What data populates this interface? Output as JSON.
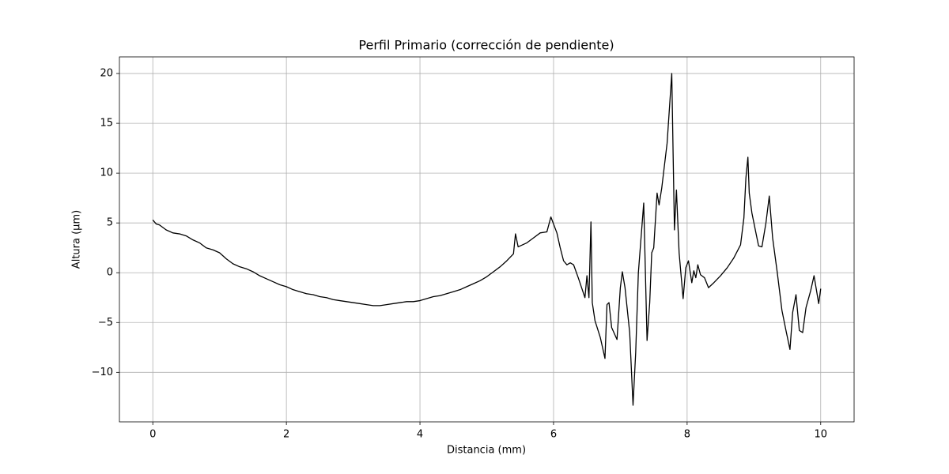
{
  "chart_data": {
    "type": "line",
    "title": "Perfil Primario (corrección de pendiente)",
    "xlabel": "Distancia (mm)",
    "ylabel": "Altura (µm)",
    "x": [
      0,
      0.05,
      0.1,
      0.2,
      0.3,
      0.4,
      0.5,
      0.6,
      0.7,
      0.8,
      0.9,
      1.0,
      1.1,
      1.2,
      1.3,
      1.4,
      1.5,
      1.6,
      1.7,
      1.8,
      1.9,
      2.0,
      2.1,
      2.2,
      2.3,
      2.4,
      2.5,
      2.6,
      2.7,
      2.8,
      2.9,
      3.0,
      3.1,
      3.2,
      3.3,
      3.4,
      3.5,
      3.6,
      3.7,
      3.8,
      3.9,
      4.0,
      4.1,
      4.2,
      4.3,
      4.4,
      4.5,
      4.6,
      4.7,
      4.8,
      4.9,
      5.0,
      5.1,
      5.2,
      5.3,
      5.4,
      5.43,
      5.47,
      5.6,
      5.7,
      5.8,
      5.9,
      5.96,
      6.05,
      6.1,
      6.15,
      6.2,
      6.25,
      6.3,
      6.37,
      6.42,
      6.47,
      6.5,
      6.53,
      6.56,
      6.58,
      6.62,
      6.7,
      6.77,
      6.8,
      6.83,
      6.87,
      6.95,
      7.0,
      7.03,
      7.07,
      7.14,
      7.19,
      7.23,
      7.27,
      7.35,
      7.4,
      7.44,
      7.47,
      7.5,
      7.55,
      7.58,
      7.62,
      7.7,
      7.75,
      7.77,
      7.79,
      7.81,
      7.84,
      7.88,
      7.94,
      7.98,
      8.02,
      8.07,
      8.1,
      8.13,
      8.16,
      8.2,
      8.26,
      8.32,
      8.4,
      8.5,
      8.6,
      8.7,
      8.8,
      8.85,
      8.88,
      8.91,
      8.93,
      8.97,
      9.03,
      9.07,
      9.12,
      9.18,
      9.23,
      9.28,
      9.35,
      9.42,
      9.48,
      9.54,
      9.58,
      9.63,
      9.68,
      9.73,
      9.78,
      9.85,
      9.9,
      9.93,
      9.97,
      10.0
    ],
    "series": [
      {
        "name": "Perfil",
        "color": "#000000",
        "values": [
          5.3,
          4.9,
          4.8,
          4.3,
          4.0,
          3.9,
          3.7,
          3.3,
          3.0,
          2.5,
          2.3,
          2.0,
          1.4,
          0.9,
          0.6,
          0.4,
          0.1,
          -0.3,
          -0.6,
          -0.9,
          -1.2,
          -1.4,
          -1.7,
          -1.9,
          -2.1,
          -2.2,
          -2.4,
          -2.5,
          -2.7,
          -2.8,
          -2.9,
          -3.0,
          -3.1,
          -3.2,
          -3.3,
          -3.3,
          -3.2,
          -3.1,
          -3.0,
          -2.9,
          -2.9,
          -2.8,
          -2.6,
          -2.4,
          -2.3,
          -2.1,
          -1.9,
          -1.7,
          -1.4,
          -1.1,
          -0.8,
          -0.4,
          0.1,
          0.6,
          1.2,
          1.9,
          3.9,
          2.6,
          3.0,
          3.5,
          4.0,
          4.1,
          5.6,
          4.0,
          2.5,
          1.2,
          0.8,
          1.0,
          0.8,
          -0.5,
          -1.5,
          -2.5,
          -0.3,
          -2.5,
          5.1,
          -3.0,
          -4.8,
          -6.5,
          -8.6,
          -3.2,
          -3.0,
          -5.5,
          -6.7,
          -1.5,
          0.1,
          -1.5,
          -6.0,
          -13.3,
          -8.0,
          0.0,
          7.0,
          -6.8,
          -3.0,
          2.0,
          2.5,
          8.0,
          6.8,
          8.5,
          13.0,
          18.0,
          20.0,
          12.0,
          4.3,
          8.3,
          2.0,
          -2.6,
          0.5,
          1.2,
          -1.0,
          0.2,
          -0.5,
          0.8,
          -0.2,
          -0.5,
          -1.5,
          -1.0,
          -0.3,
          0.5,
          1.5,
          2.8,
          5.5,
          9.5,
          11.6,
          8.0,
          6.0,
          4.0,
          2.7,
          2.6,
          5.0,
          7.7,
          3.5,
          0.0,
          -3.8,
          -5.8,
          -7.7,
          -4.0,
          -2.2,
          -5.8,
          -6.0,
          -3.5,
          -1.8,
          -0.3,
          -1.5,
          -3.1,
          -1.6
        ]
      }
    ],
    "xlim": [
      -0.5,
      10.5
    ],
    "ylim": [
      -14.97,
      21.67
    ],
    "xticks": [
      0,
      2,
      4,
      6,
      8,
      10
    ],
    "yticks": [
      {
        "value": -10,
        "label": "−10"
      },
      {
        "value": -5,
        "label": "−5"
      },
      0,
      5,
      10,
      15,
      20
    ],
    "grid": true
  }
}
